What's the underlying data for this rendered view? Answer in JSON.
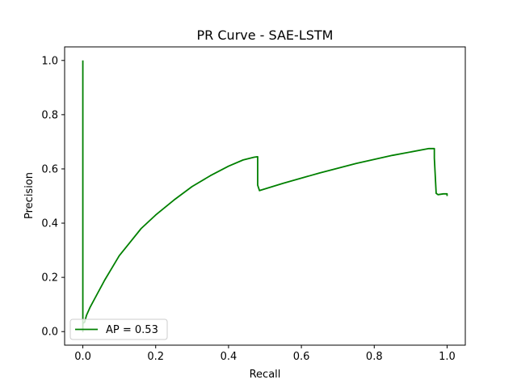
{
  "chart_data": {
    "type": "line",
    "title": "PR Curve - SAE-LSTM",
    "xlabel": "Recall",
    "ylabel": "Precision",
    "xlim": [
      -0.05,
      1.05
    ],
    "ylim": [
      -0.05,
      1.05
    ],
    "xticks": [
      0.0,
      0.2,
      0.4,
      0.6,
      0.8,
      1.0
    ],
    "xtick_labels": [
      "0.0",
      "0.2",
      "0.4",
      "0.6",
      "0.8",
      "1.0"
    ],
    "yticks": [
      0.0,
      0.2,
      0.4,
      0.6,
      0.8,
      1.0
    ],
    "ytick_labels": [
      "0.0",
      "0.2",
      "0.4",
      "0.6",
      "0.8",
      "1.0"
    ],
    "grid": false,
    "legend": "lower-left",
    "series": [
      {
        "name": "AP = 0.53",
        "color": "#008000",
        "x": [
          0.0,
          0.0,
          0.0,
          0.0,
          0.005,
          0.01,
          0.02,
          0.04,
          0.06,
          0.08,
          0.1,
          0.13,
          0.16,
          0.2,
          0.25,
          0.3,
          0.35,
          0.4,
          0.44,
          0.47,
          0.48,
          0.48,
          0.485,
          0.55,
          0.65,
          0.75,
          0.85,
          0.95,
          0.965,
          0.965,
          0.97,
          0.975,
          0.99,
          1.0,
          1.0
        ],
        "y": [
          1.0,
          0.0,
          0.05,
          0.03,
          0.035,
          0.06,
          0.09,
          0.14,
          0.19,
          0.235,
          0.28,
          0.33,
          0.38,
          0.43,
          0.485,
          0.535,
          0.575,
          0.61,
          0.633,
          0.643,
          0.645,
          0.54,
          0.52,
          0.547,
          0.585,
          0.62,
          0.65,
          0.675,
          0.675,
          0.64,
          0.51,
          0.505,
          0.508,
          0.508,
          0.5
        ]
      }
    ]
  }
}
